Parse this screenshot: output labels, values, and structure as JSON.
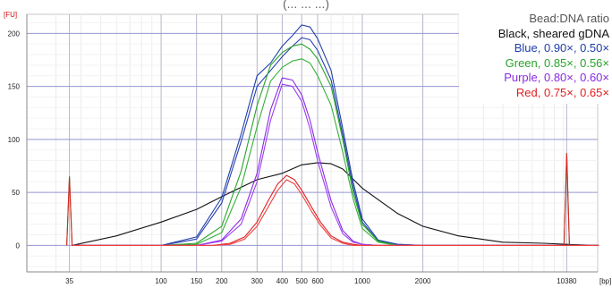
{
  "top_caption": "(... ... ...)",
  "chart_data": {
    "type": "line",
    "y_unit": "[FU]",
    "x_unit": "[bp]",
    "xlabel": "",
    "ylabel": "",
    "x_scale": "log",
    "ylim": [
      -25,
      218
    ],
    "grid": true,
    "x_ticks": [
      35,
      100,
      150,
      200,
      300,
      400,
      500,
      600,
      1000,
      2000,
      10380
    ],
    "y_ticks": [
      0,
      50,
      100,
      150,
      200
    ],
    "legend_position": "top-right",
    "legend": {
      "title": "Bead:DNA ratio",
      "entries": [
        {
          "label": "Black, sheared gDNA",
          "color": "#111111"
        },
        {
          "label": "Blue, 0.90×, 0.50×",
          "color": "#1f3fa8"
        },
        {
          "label": "Green, 0.85×, 0.56×",
          "color": "#28a428"
        },
        {
          "label": "Purple, 0.80×, 0.60×",
          "color": "#8a2be2"
        },
        {
          "label": "Red, 0.75×, 0.65×",
          "color": "#e02020"
        }
      ]
    },
    "markers": [
      {
        "x": 35,
        "peak": 65,
        "label": "35"
      },
      {
        "x": 10380,
        "peak": 87,
        "label": "10380"
      }
    ],
    "series": [
      {
        "color": "#111111",
        "x": [
          36,
          60,
          100,
          150,
          200,
          300,
          400,
          500,
          600,
          700,
          800,
          1000,
          1500,
          2000,
          3000,
          5000,
          8000,
          10380,
          15000
        ],
        "y": [
          0,
          9,
          22,
          34,
          46,
          62,
          68,
          76,
          78,
          77,
          72,
          54,
          30,
          18,
          9,
          3,
          2,
          1,
          0
        ]
      },
      {
        "color": "#1f3fa8",
        "x": [
          36,
          100,
          150,
          200,
          250,
          300,
          350,
          400,
          450,
          500,
          550,
          600,
          700,
          800,
          900,
          1000,
          1200,
          1500,
          2000,
          3000,
          5000,
          10380,
          15000
        ],
        "y": [
          0,
          0,
          8,
          45,
          105,
          160,
          172,
          188,
          198,
          208,
          206,
          195,
          165,
          110,
          60,
          25,
          5,
          1,
          0,
          0,
          0,
          0,
          0
        ]
      },
      {
        "color": "#2a3fb0",
        "x": [
          36,
          100,
          150,
          200,
          250,
          300,
          350,
          400,
          450,
          500,
          550,
          600,
          700,
          800,
          900,
          1000,
          1200,
          1500,
          2000,
          3000,
          5000,
          10380,
          15000
        ],
        "y": [
          0,
          0,
          6,
          40,
          98,
          150,
          165,
          178,
          188,
          196,
          194,
          184,
          156,
          104,
          55,
          22,
          4,
          1,
          0,
          0,
          0,
          0,
          0
        ]
      },
      {
        "color": "#28a428",
        "x": [
          36,
          100,
          150,
          200,
          250,
          300,
          350,
          400,
          450,
          500,
          550,
          600,
          700,
          800,
          900,
          1000,
          1200,
          1500,
          2000,
          3000,
          10380,
          15000
        ],
        "y": [
          0,
          0,
          2,
          18,
          70,
          132,
          170,
          182,
          188,
          190,
          185,
          176,
          150,
          100,
          50,
          20,
          4,
          0,
          0,
          0,
          0,
          0
        ]
      },
      {
        "color": "#36b036",
        "x": [
          36,
          100,
          150,
          200,
          250,
          300,
          350,
          400,
          450,
          500,
          550,
          600,
          700,
          800,
          900,
          1000,
          1200,
          1500,
          2000,
          3000,
          10380,
          15000
        ],
        "y": [
          0,
          0,
          1,
          12,
          55,
          112,
          155,
          168,
          174,
          176,
          172,
          160,
          132,
          88,
          44,
          16,
          3,
          0,
          0,
          0,
          0,
          0
        ]
      },
      {
        "color": "#8a2be2",
        "x": [
          36,
          150,
          200,
          250,
          300,
          350,
          400,
          450,
          500,
          550,
          600,
          700,
          800,
          900,
          1000,
          1200,
          10380,
          15000
        ],
        "y": [
          0,
          0,
          5,
          25,
          68,
          128,
          158,
          156,
          142,
          118,
          88,
          42,
          14,
          4,
          1,
          0,
          0,
          0
        ]
      },
      {
        "color": "#9a3ff0",
        "x": [
          36,
          150,
          200,
          250,
          300,
          350,
          400,
          450,
          500,
          550,
          600,
          700,
          800,
          900,
          1000,
          1200,
          10380,
          15000
        ],
        "y": [
          0,
          0,
          4,
          20,
          60,
          118,
          152,
          150,
          136,
          110,
          80,
          36,
          11,
          3,
          1,
          0,
          0,
          0
        ]
      },
      {
        "color": "#e02020",
        "x": [
          36,
          180,
          220,
          260,
          300,
          340,
          380,
          420,
          460,
          500,
          560,
          620,
          700,
          800,
          900,
          1000,
          10380,
          15000
        ],
        "y": [
          0,
          0,
          2,
          8,
          22,
          42,
          58,
          66,
          62,
          52,
          36,
          22,
          9,
          3,
          1,
          0,
          0,
          0
        ]
      },
      {
        "color": "#f04040",
        "x": [
          36,
          180,
          220,
          260,
          300,
          340,
          380,
          420,
          460,
          500,
          560,
          620,
          700,
          800,
          900,
          1000,
          10380,
          15000
        ],
        "y": [
          0,
          0,
          1,
          6,
          18,
          36,
          52,
          62,
          58,
          48,
          32,
          19,
          7,
          2,
          0,
          0,
          0,
          0
        ]
      }
    ]
  }
}
